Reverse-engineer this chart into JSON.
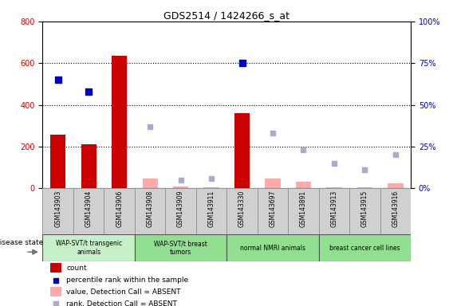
{
  "title": "GDS2514 / 1424266_s_at",
  "samples": [
    "GSM143903",
    "GSM143904",
    "GSM143906",
    "GSM143908",
    "GSM143909",
    "GSM143911",
    "GSM143330",
    "GSM143697",
    "GSM143891",
    "GSM143913",
    "GSM143915",
    "GSM143916"
  ],
  "count_present": [
    255,
    210,
    635,
    null,
    null,
    null,
    360,
    null,
    null,
    null,
    null,
    null
  ],
  "count_absent": [
    null,
    null,
    null,
    45,
    8,
    5,
    null,
    48,
    32,
    5,
    5,
    22
  ],
  "rank_present_pct": [
    65,
    58,
    null,
    null,
    null,
    null,
    75,
    null,
    null,
    null,
    null,
    null
  ],
  "rank_absent_pct": [
    null,
    null,
    null,
    37,
    5,
    6,
    null,
    33,
    23,
    15,
    11,
    20
  ],
  "groups": [
    {
      "label": "WAP-SVT/t transgenic\nanimals",
      "start": 0,
      "end": 3,
      "color": "#c8f0c8"
    },
    {
      "label": "WAP-SVT/t breast\ntumors",
      "start": 3,
      "end": 6,
      "color": "#90e090"
    },
    {
      "label": "normal NMRI animals",
      "start": 6,
      "end": 9,
      "color": "#90e090"
    },
    {
      "label": "breast cancer cell lines",
      "start": 9,
      "end": 12,
      "color": "#90e090"
    }
  ],
  "ylim_left": [
    0,
    800
  ],
  "ylim_right": [
    0,
    100
  ],
  "yticks_left": [
    0,
    200,
    400,
    600,
    800
  ],
  "yticks_right": [
    0,
    25,
    50,
    75,
    100
  ],
  "ytick_labels_right": [
    "0%",
    "25%",
    "50%",
    "75%",
    "100%"
  ],
  "bar_width": 0.5,
  "count_present_color": "#cc0000",
  "count_absent_color": "#ffaaaa",
  "rank_present_color": "#0000cc",
  "rank_absent_color": "#aaaacc",
  "legend_items": [
    {
      "label": "count",
      "color": "#cc0000",
      "type": "bar"
    },
    {
      "label": "percentile rank within the sample",
      "color": "#0000cc",
      "type": "square"
    },
    {
      "label": "value, Detection Call = ABSENT",
      "color": "#ffaaaa",
      "type": "bar"
    },
    {
      "label": "rank, Detection Call = ABSENT",
      "color": "#aaaacc",
      "type": "square"
    }
  ]
}
